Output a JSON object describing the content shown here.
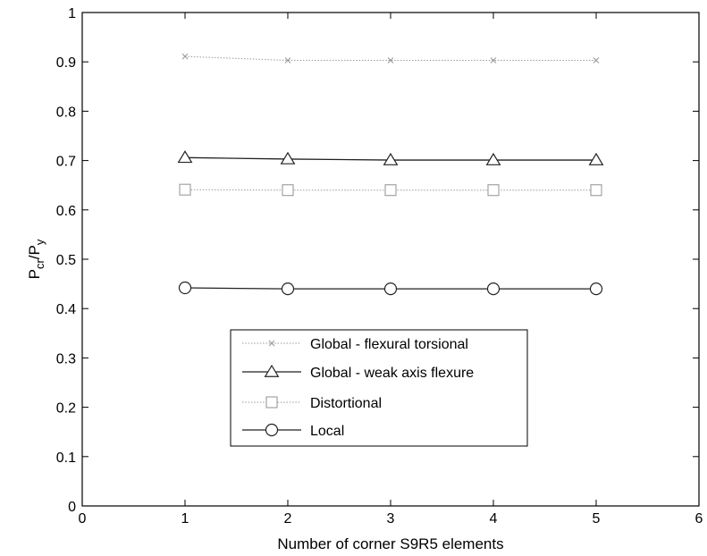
{
  "chart_data": {
    "type": "line",
    "title": "",
    "xlabel": "Number of corner S9R5 elements",
    "ylabel": {
      "base": "P",
      "num_sub": "cr",
      "den_base": "P",
      "den_sub": "y"
    },
    "xlim": [
      0,
      6
    ],
    "ylim": [
      0,
      1
    ],
    "xticks": [
      0,
      1,
      2,
      3,
      4,
      5,
      6
    ],
    "xtick_labels": [
      "0",
      "1",
      "2",
      "3",
      "4",
      "5",
      "6"
    ],
    "yticks": [
      0,
      0.1,
      0.2,
      0.3,
      0.4,
      0.5,
      0.6,
      0.7,
      0.8,
      0.9,
      1
    ],
    "ytick_labels": [
      "0",
      "0.1",
      "0.2",
      "0.3",
      "0.4",
      "0.5",
      "0.6",
      "0.7",
      "0.8",
      "0.9",
      "1"
    ],
    "grid": false,
    "legend_position": "lower-center",
    "x": [
      1,
      2,
      3,
      4,
      5
    ],
    "series": [
      {
        "name": "Global - flexural torsional",
        "values": [
          0.911,
          0.903,
          0.903,
          0.903,
          0.903
        ],
        "marker": "x",
        "line_style": "dotted",
        "color": "#9a9a9a"
      },
      {
        "name": "Global - weak axis flexure",
        "values": [
          0.706,
          0.703,
          0.701,
          0.701,
          0.701
        ],
        "marker": "triangle",
        "line_style": "solid",
        "color": "#222222"
      },
      {
        "name": "Distortional",
        "values": [
          0.641,
          0.64,
          0.64,
          0.64,
          0.64
        ],
        "marker": "square",
        "line_style": "dotted",
        "color": "#9a9a9a"
      },
      {
        "name": "Local",
        "values": [
          0.442,
          0.44,
          0.44,
          0.44,
          0.44
        ],
        "marker": "circle",
        "line_style": "solid",
        "color": "#222222"
      }
    ]
  }
}
